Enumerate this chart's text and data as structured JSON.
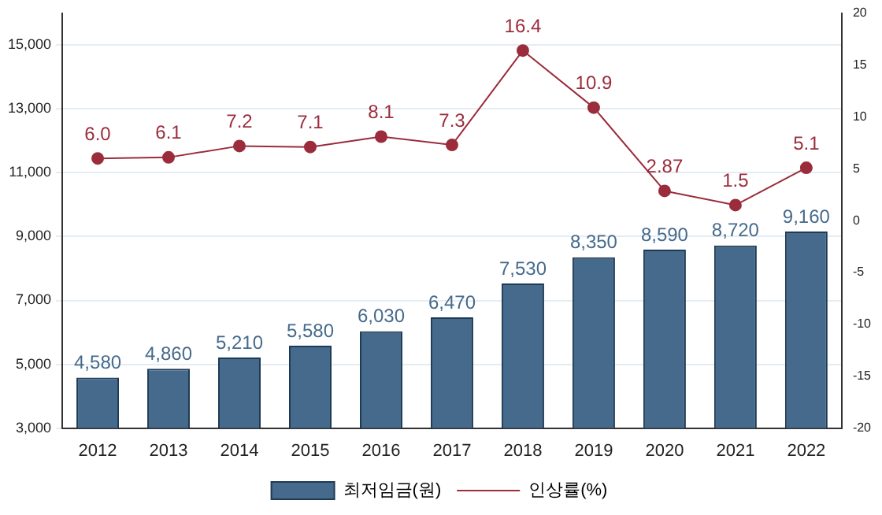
{
  "chart_data": {
    "type": "bar",
    "categories": [
      "2012",
      "2013",
      "2014",
      "2015",
      "2016",
      "2017",
      "2018",
      "2019",
      "2020",
      "2021",
      "2022"
    ],
    "series": [
      {
        "name": "최저임금(원)",
        "color": "#456a8c",
        "values": [
          4580,
          4860,
          5210,
          5580,
          6030,
          6470,
          7530,
          8350,
          8590,
          8720,
          9160
        ],
        "value_labels": [
          "4,580",
          "4,860",
          "5,210",
          "5,580",
          "6,030",
          "6,470",
          "7,530",
          "8,350",
          "8,590",
          "8,720",
          "9,160"
        ]
      },
      {
        "name": "인상률(%)",
        "type": "line",
        "axis": "y2",
        "color": "#9b2c3c",
        "marker": "circle",
        "values": [
          6.0,
          6.1,
          7.2,
          7.1,
          8.1,
          7.3,
          16.4,
          10.9,
          2.87,
          1.5,
          5.1
        ],
        "value_labels": [
          "6.0",
          "6.1",
          "7.2",
          "7.1",
          "8.1",
          "7.3",
          "16.4",
          "10.9",
          "2.87",
          "1.5",
          "5.1"
        ]
      }
    ],
    "ylim": [
      3000,
      16000
    ],
    "yticks": [
      {
        "value": 3000,
        "label": "3,000"
      },
      {
        "value": 5000,
        "label": "5,000"
      },
      {
        "value": 7000,
        "label": "7,000"
      },
      {
        "value": 9000,
        "label": "9,000"
      },
      {
        "value": 11000,
        "label": "11,000"
      },
      {
        "value": 13000,
        "label": "13,000"
      },
      {
        "value": 15000,
        "label": "15,000"
      }
    ],
    "y2lim": [
      -20,
      20
    ],
    "y2ticks": [
      -20,
      -15,
      -10,
      -5,
      0,
      5,
      10,
      15,
      20
    ],
    "grid": "y",
    "legend": "bottom"
  }
}
